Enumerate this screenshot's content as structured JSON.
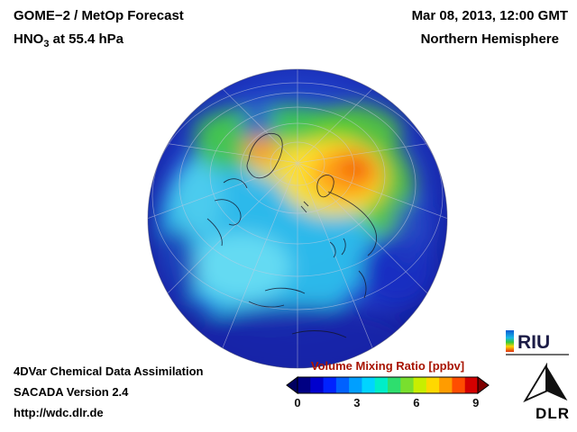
{
  "header": {
    "product": "GOME−2 / MetOp Forecast",
    "species": "HNO",
    "species_sub": "3",
    "level": " at 55.4 hPa",
    "datetime": "Mar 08, 2013, 12:00 GMT",
    "region": "Northern Hemisphere"
  },
  "footer": {
    "line1": "4DVar Chemical Data Assimilation",
    "line2": "SACADA Version 2.4",
    "line3": "http://wdc.dlr.de"
  },
  "colorbar": {
    "title": "Volume Mixing Ratio [ppbv]",
    "title_color": "#a81300",
    "ticks": [
      0,
      3,
      6,
      9
    ],
    "segment_colors": [
      "#000083",
      "#0000cd",
      "#0022ff",
      "#0061ff",
      "#009fff",
      "#00d4ff",
      "#00eec8",
      "#2ede6e",
      "#79df2e",
      "#c8ee00",
      "#ffd800",
      "#ff9c00",
      "#ff4d00",
      "#d40000"
    ],
    "under_color": "#000060",
    "over_color": "#7e0000"
  },
  "logos": {
    "riu": "RIU",
    "dlr": "DLR"
  },
  "chart_data": {
    "type": "heatmap",
    "title": "GOME−2 / MetOp Forecast of HNO3 at 55.4 hPa",
    "datetime": "Mar 08, 2013, 12:00 GMT",
    "projection": "Northern Hemisphere globe view",
    "variable": "HNO3 volume mixing ratio",
    "units": "ppbv",
    "colorbar_label": "Volume Mixing Ratio [ppbv]",
    "colorbar_ticks": [
      0,
      3,
      6,
      9
    ],
    "value_pattern": "0-2 ppbv (dark blue) at the hemisphere rim and low latitudes; 2-4 ppbv (cyan) over mid-latitudes; 4-5 ppbv (green) band near 60N; maximum 6-8 ppbv (yellow-orange-red) over the polar cap toward Scandinavia and Siberia; smaller orange patch near Greenland; darker blue pocket on the east-Asian side"
  }
}
